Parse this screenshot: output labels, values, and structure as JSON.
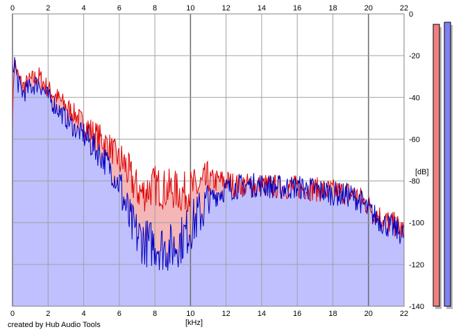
{
  "x_axis": {
    "unit_label": "[kHz]",
    "ticks": [
      "0",
      "2",
      "4",
      "6",
      "8",
      "10",
      "12",
      "14",
      "16",
      "18",
      "20",
      "22"
    ],
    "min": 0,
    "max": 22
  },
  "y_axis": {
    "unit_label": "[dB]",
    "ticks": [
      "0",
      "-20",
      "-40",
      "-60",
      "-80",
      "-100",
      "-120",
      "-140"
    ],
    "min": -140,
    "max": 0
  },
  "credit_text": "created by Hub Audio Tools",
  "colors": {
    "grid": "#a0a0a0",
    "grid_major": "#707070",
    "left_line": "#e00000",
    "right_line": "#0000c0",
    "left_fill": "#f4b6b6",
    "right_fill": "#c0c0ff",
    "meter_left": "#f08080",
    "meter_right": "#8080f0",
    "meter_shadow": "#b8b8b8"
  },
  "meters": [
    {
      "channel": "left",
      "peak_db": -5
    },
    {
      "channel": "right",
      "peak_db": -4
    }
  ],
  "chart_data": {
    "type": "area",
    "xlabel": "[kHz]",
    "ylabel": "[dB]",
    "xlim": [
      0,
      22
    ],
    "ylim": [
      -140,
      0
    ],
    "grid": true,
    "series": [
      {
        "channel": "left",
        "color": "#e00000",
        "x": [
          0,
          0.1,
          0.3,
          0.6,
          1.0,
          1.5,
          2.0,
          2.5,
          3.0,
          3.5,
          4.0,
          4.5,
          5.0,
          5.5,
          6.0,
          6.3,
          6.6,
          7.0,
          7.3,
          7.6,
          8.0,
          8.5,
          9.0,
          9.5,
          10.0,
          10.5,
          11.0,
          11.5,
          12.0,
          12.5,
          13.0,
          14.0,
          15.0,
          16.0,
          17.0,
          18.0,
          19.0,
          19.5,
          20.0,
          20.5,
          21.0,
          21.5,
          22.0
        ],
        "y": [
          -52,
          -22,
          -30,
          -35,
          -32,
          -30,
          -36,
          -40,
          -44,
          -48,
          -52,
          -57,
          -60,
          -64,
          -70,
          -72,
          -78,
          -84,
          -86,
          -84,
          -82,
          -84,
          -84,
          -86,
          -84,
          -83,
          -80,
          -80,
          -80,
          -82,
          -82,
          -82,
          -83,
          -83,
          -84,
          -85,
          -86,
          -88,
          -92,
          -96,
          -99,
          -101,
          -104
        ]
      },
      {
        "channel": "right",
        "color": "#0000c0",
        "x": [
          0,
          0.1,
          0.3,
          0.6,
          1.0,
          1.5,
          2.0,
          2.5,
          3.0,
          3.5,
          4.0,
          4.5,
          5.0,
          5.5,
          6.0,
          6.3,
          6.6,
          7.0,
          7.3,
          7.6,
          8.0,
          8.5,
          9.0,
          9.5,
          10.0,
          10.5,
          11.0,
          11.5,
          12.0,
          12.5,
          13.0,
          14.0,
          15.0,
          16.0,
          17.0,
          18.0,
          19.0,
          19.5,
          20.0,
          20.5,
          21.0,
          21.5,
          22.0
        ],
        "y": [
          -28,
          -22,
          -33,
          -38,
          -35,
          -33,
          -40,
          -45,
          -50,
          -55,
          -58,
          -63,
          -68,
          -74,
          -82,
          -90,
          -100,
          -106,
          -108,
          -110,
          -110,
          -112,
          -112,
          -108,
          -102,
          -96,
          -90,
          -86,
          -84,
          -83,
          -82,
          -82,
          -83,
          -83,
          -84,
          -86,
          -87,
          -89,
          -94,
          -98,
          -101,
          -103,
          -106
        ]
      }
    ]
  }
}
